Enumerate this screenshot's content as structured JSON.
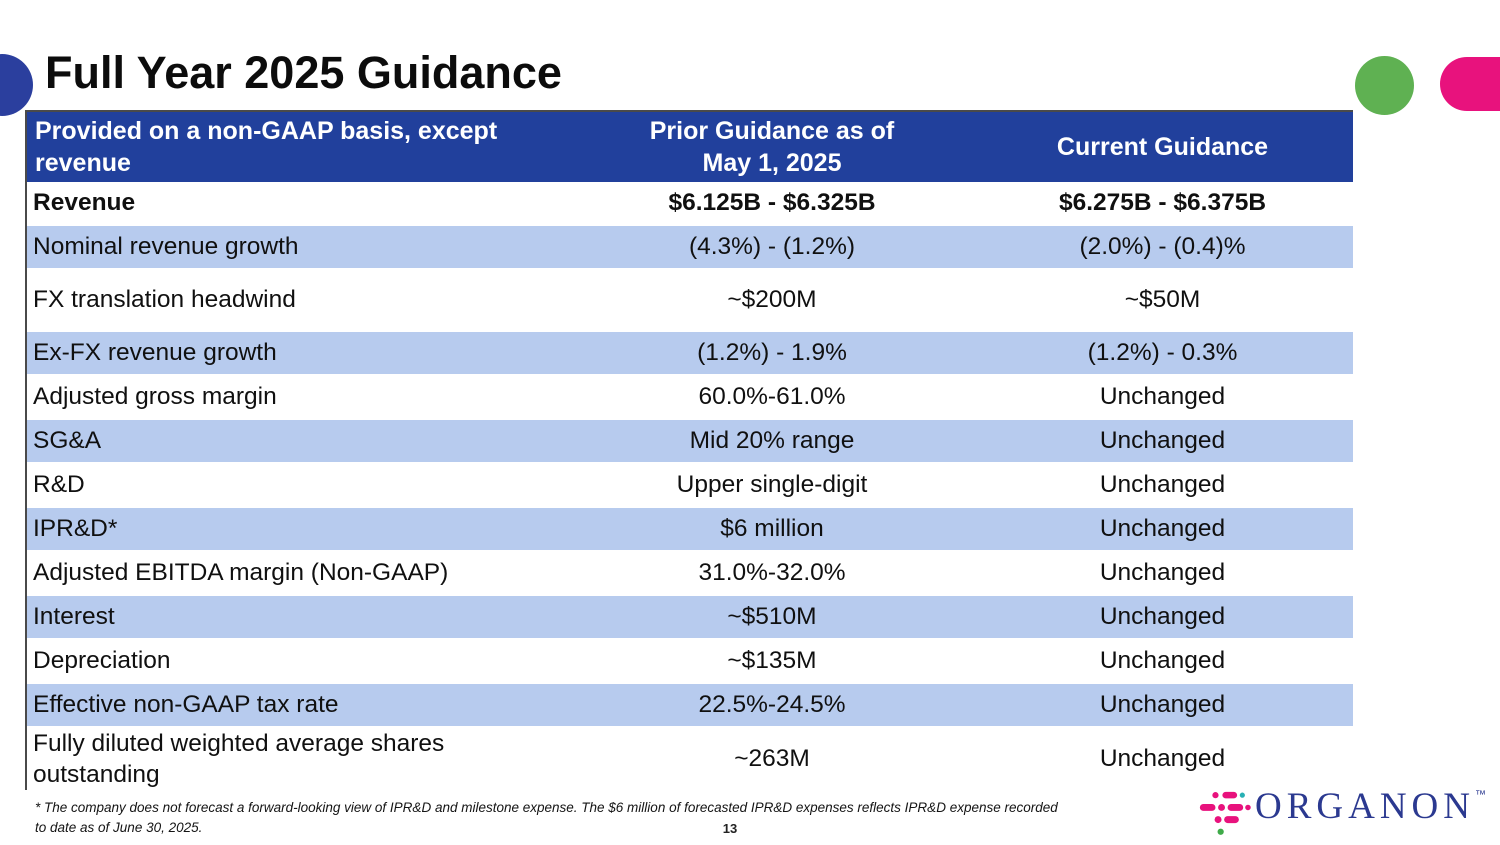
{
  "slide": {
    "title": "Full Year 2025 Guidance",
    "page_number": "13",
    "footnote": "* The company does not forecast a forward-looking view of IPR&D and milestone expense. The $6 million of forecasted IPR&D expenses reflects IPR&D expense recorded to date as of June 30, 2025."
  },
  "colors": {
    "table_header_bg": "#21409c",
    "row_stripe_bg": "#b7cbee",
    "accent_green": "#5fb152",
    "accent_pink": "#e8127d",
    "accent_navy": "#2b3f9e",
    "logo_blue": "#2b3990"
  },
  "logo": {
    "text": "ORGANON",
    "trademark": "™",
    "icon": "organon-asterisk-icon"
  },
  "table": {
    "columns": [
      {
        "label": "Provided on a non-GAAP basis, except revenue"
      },
      {
        "line1": "Prior Guidance as of",
        "line2": "May 1, 2025"
      },
      {
        "label": "Current Guidance"
      }
    ],
    "rows": [
      {
        "label": "Revenue",
        "prior": "$6.125B - $6.325B",
        "current": "$6.275B - $6.375B"
      },
      {
        "label": "Nominal revenue growth",
        "prior": "(4.3%) - (1.2%)",
        "current": "(2.0%) - (0.4)%"
      },
      {
        "label": "FX translation headwind",
        "prior": "~$200M",
        "current": "~$50M"
      },
      {
        "label": "Ex-FX revenue growth",
        "prior": "(1.2%) - 1.9%",
        "current": "(1.2%) - 0.3%"
      },
      {
        "label": "Adjusted gross margin",
        "prior": "60.0%-61.0%",
        "current": "Unchanged"
      },
      {
        "label": "SG&A",
        "prior": "Mid 20% range",
        "current": "Unchanged"
      },
      {
        "label": "R&D",
        "prior": "Upper single-digit",
        "current": "Unchanged"
      },
      {
        "label": "IPR&D*",
        "prior": "$6 million",
        "current": "Unchanged"
      },
      {
        "label": "Adjusted EBITDA margin (Non-GAAP)",
        "prior": "31.0%-32.0%",
        "current": "Unchanged"
      },
      {
        "label": "Interest",
        "prior": "~$510M",
        "current": "Unchanged"
      },
      {
        "label": "Depreciation",
        "prior": "~$135M",
        "current": "Unchanged"
      },
      {
        "label": "Effective non-GAAP tax rate",
        "prior": "22.5%-24.5%",
        "current": "Unchanged"
      },
      {
        "label": "Fully diluted weighted average shares outstanding",
        "prior": "~263M",
        "current": "Unchanged"
      }
    ]
  }
}
